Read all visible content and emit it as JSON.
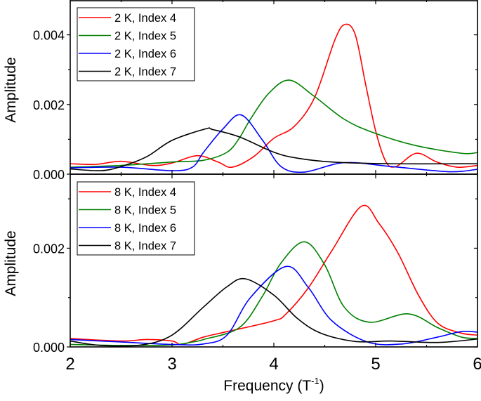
{
  "chart_data": [
    {
      "type": "line",
      "panel": "top",
      "xlabel": "",
      "ylabel": "Amplitude",
      "xlim": [
        2,
        6
      ],
      "ylim": [
        0,
        0.005
      ],
      "x_ticks": [
        2,
        3,
        4,
        5,
        6
      ],
      "y_ticks": [
        "0.000",
        "0.002",
        "0.004"
      ],
      "y_tick_values": [
        0,
        0.002,
        0.004
      ],
      "grid": false,
      "legend_position": "top-left",
      "series": [
        {
          "name": "2 K, Index 4",
          "color": "#ff0000",
          "points": [
            [
              2.0,
              0.0003
            ],
            [
              2.25,
              0.00028
            ],
            [
              2.5,
              0.00037
            ],
            [
              2.8,
              0.00025
            ],
            [
              3.0,
              0.00032
            ],
            [
              3.25,
              0.00053
            ],
            [
              3.45,
              0.00035
            ],
            [
              3.59,
              0.0002
            ],
            [
              3.8,
              0.0005
            ],
            [
              4.0,
              0.00103
            ],
            [
              4.2,
              0.00137
            ],
            [
              4.4,
              0.0022
            ],
            [
              4.6,
              0.00386
            ],
            [
              4.7,
              0.0043
            ],
            [
              4.8,
              0.004
            ],
            [
              4.9,
              0.0026
            ],
            [
              5.0,
              0.00124
            ],
            [
              5.1,
              0.00036
            ],
            [
              5.2,
              0.00022
            ],
            [
              5.4,
              0.0006
            ],
            [
              5.6,
              0.00035
            ],
            [
              5.8,
              0.0002
            ],
            [
              6.0,
              0.00025
            ]
          ]
        },
        {
          "name": "2 K, Index 5",
          "color": "#008000",
          "points": [
            [
              2.0,
              0.0002
            ],
            [
              2.5,
              0.00025
            ],
            [
              3.0,
              0.00035
            ],
            [
              3.31,
              0.0004
            ],
            [
              3.54,
              0.00063
            ],
            [
              3.66,
              0.00103
            ],
            [
              3.77,
              0.00158
            ],
            [
              3.95,
              0.00232
            ],
            [
              4.15,
              0.0027
            ],
            [
              4.39,
              0.00225
            ],
            [
              4.69,
              0.00158
            ],
            [
              4.97,
              0.0012
            ],
            [
              5.38,
              0.00083
            ],
            [
              5.84,
              0.0006
            ],
            [
              6.0,
              0.00062
            ]
          ]
        },
        {
          "name": "2 K, Index 6",
          "color": "#0000ff",
          "points": [
            [
              2.0,
              0.00018
            ],
            [
              2.5,
              0.0002
            ],
            [
              3.0,
              0.0001
            ],
            [
              3.2,
              0.0002
            ],
            [
              3.31,
              0.00063
            ],
            [
              3.5,
              0.0013
            ],
            [
              3.68,
              0.0017
            ],
            [
              3.89,
              0.00097
            ],
            [
              4.07,
              0.00022
            ],
            [
              4.3,
              6e-05
            ],
            [
              4.69,
              0.00033
            ],
            [
              5.15,
              0.00022
            ],
            [
              5.72,
              7e-05
            ],
            [
              6.0,
              0.00014
            ]
          ]
        },
        {
          "name": "2 K, Index 7",
          "color": "#000000",
          "points": [
            [
              2.0,
              0.00015
            ],
            [
              2.3,
              0.0001
            ],
            [
              2.5,
              0.00022
            ],
            [
              2.75,
              0.0005
            ],
            [
              3.0,
              0.00097
            ],
            [
              3.33,
              0.0013
            ],
            [
              3.4,
              0.00128
            ],
            [
              3.66,
              0.00107
            ],
            [
              4.0,
              0.00063
            ],
            [
              4.23,
              0.00046
            ],
            [
              4.57,
              0.00035
            ],
            [
              5.15,
              0.0003
            ],
            [
              6.0,
              0.0003
            ]
          ]
        }
      ]
    },
    {
      "type": "line",
      "panel": "bottom",
      "xlabel": "Frequency (T",
      "xlabel_superscript": "-1",
      "xlabel_end": ")",
      "ylabel": "Amplitude",
      "xlim": [
        2,
        6
      ],
      "ylim": [
        0,
        0.0035
      ],
      "x_ticks": [
        "2",
        "3",
        "4",
        "5",
        "6"
      ],
      "x_tick_values": [
        2,
        3,
        4,
        5,
        6
      ],
      "y_ticks": [
        "0.000",
        "0.002"
      ],
      "y_tick_values": [
        0,
        0.002
      ],
      "grid": false,
      "legend_position": "top-left",
      "series": [
        {
          "name": "8 K, Index 4",
          "color": "#ff0000",
          "points": [
            [
              2.0,
              0.00017
            ],
            [
              2.5,
              0.00012
            ],
            [
              2.75,
              0.00015
            ],
            [
              3.0,
              0.00012
            ],
            [
              3.1,
              5e-05
            ],
            [
              3.31,
              0.0002
            ],
            [
              3.54,
              0.00031
            ],
            [
              4.0,
              0.00053
            ],
            [
              4.12,
              0.00067
            ],
            [
              4.34,
              0.0012
            ],
            [
              4.57,
              0.00195
            ],
            [
              4.86,
              0.00285
            ],
            [
              5.03,
              0.00251
            ],
            [
              5.22,
              0.0019
            ],
            [
              5.42,
              0.00105
            ],
            [
              5.61,
              0.00048
            ],
            [
              5.84,
              0.00028
            ],
            [
              6.0,
              0.00024
            ]
          ]
        },
        {
          "name": "8 K, Index 5",
          "color": "#008000",
          "points": [
            [
              2.0,
              5e-05
            ],
            [
              2.5,
              3e-05
            ],
            [
              3.0,
              4e-05
            ],
            [
              3.2,
              0.0001
            ],
            [
              3.31,
              0.00015
            ],
            [
              3.66,
              0.00039
            ],
            [
              3.88,
              0.001
            ],
            [
              4.07,
              0.0017
            ],
            [
              4.3,
              0.00213
            ],
            [
              4.5,
              0.00166
            ],
            [
              4.69,
              0.00081
            ],
            [
              4.94,
              0.0005
            ],
            [
              5.32,
              0.00067
            ],
            [
              5.61,
              0.00039
            ],
            [
              5.84,
              0.0002
            ],
            [
              6.0,
              0.00017
            ]
          ]
        },
        {
          "name": "8 K, Index 6",
          "color": "#0000ff",
          "points": [
            [
              2.0,
              0.00015
            ],
            [
              2.5,
              0.0001
            ],
            [
              3.0,
              5e-05
            ],
            [
              3.31,
              6e-05
            ],
            [
              3.54,
              0.00024
            ],
            [
              3.77,
              0.001
            ],
            [
              4.12,
              0.00163
            ],
            [
              4.34,
              0.0012
            ],
            [
              4.57,
              0.00053
            ],
            [
              4.92,
              0.0001
            ],
            [
              5.26,
              6e-05
            ],
            [
              5.61,
              0.0002
            ],
            [
              5.84,
              0.00031
            ],
            [
              6.0,
              0.0003
            ]
          ]
        },
        {
          "name": "8 K, Index 7",
          "color": "#000000",
          "points": [
            [
              2.0,
              0.00012
            ],
            [
              2.3,
              3e-05
            ],
            [
              2.7,
              4e-05
            ],
            [
              3.0,
              0.00024
            ],
            [
              3.31,
              0.00081
            ],
            [
              3.54,
              0.00122
            ],
            [
              3.72,
              0.00138
            ],
            [
              4.0,
              0.00105
            ],
            [
              4.23,
              0.00058
            ],
            [
              4.46,
              0.00028
            ],
            [
              4.8,
              0.00011
            ],
            [
              5.15,
              0.00012
            ],
            [
              5.61,
              9e-05
            ],
            [
              6.0,
              0.00016
            ]
          ]
        }
      ]
    }
  ]
}
